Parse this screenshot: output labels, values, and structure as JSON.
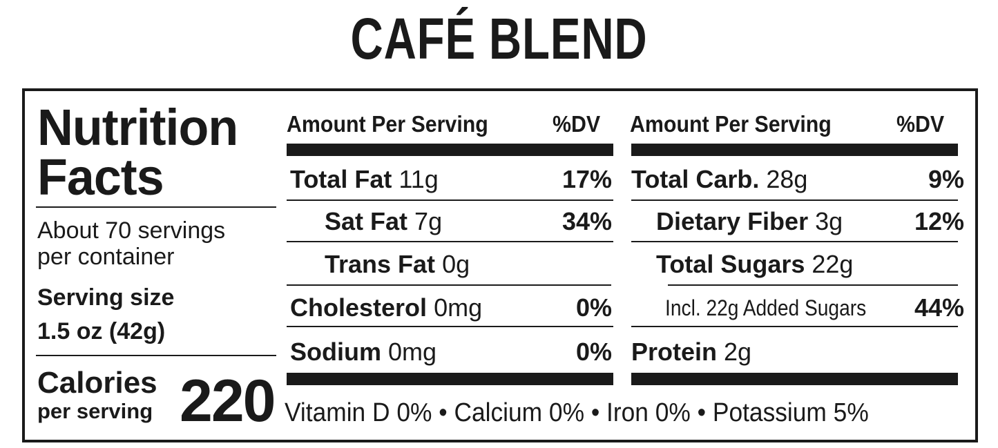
{
  "title": "CAFÉ BLEND",
  "panel": {
    "heading": [
      "Nutrition",
      "Facts"
    ],
    "servings": [
      "About 70 servings",
      "per container"
    ],
    "serving_size_label": "Serving size",
    "serving_size": "1.5 oz (42g)",
    "calories_label": "Calories",
    "calories_sub": "per serving",
    "calories": 220
  },
  "columns": [
    {
      "header": "Amount Per Serving",
      "dv_header": "%DV",
      "rows": [
        {
          "name": "Total Fat",
          "amount": "11g",
          "dv": "17%"
        },
        {
          "name": "Sat Fat",
          "amount": "7g",
          "dv": "34%"
        },
        {
          "name": "Trans Fat",
          "amount": "0g"
        },
        {
          "name": "Cholesterol",
          "amount": "0mg",
          "dv": "0%"
        },
        {
          "name": "Sodium",
          "amount": "0mg",
          "dv": "0%"
        }
      ]
    },
    {
      "header": "Amount Per Serving",
      "dv_header": "%DV",
      "rows": [
        {
          "name": "Total Carb.",
          "amount": "28g",
          "dv": "9%"
        },
        {
          "name": "Dietary Fiber",
          "amount": "3g",
          "dv": "12%"
        },
        {
          "name": "Total Sugars",
          "amount": "22g"
        },
        {
          "amount": "Incl. 22g Added Sugars",
          "dv": "44%"
        },
        {
          "name": "Protein",
          "amount": "2g"
        }
      ]
    }
  ],
  "vitamins": {
    "items": [
      "Vitamin D 0%",
      "Calcium 0%",
      "Iron 0%",
      "Potassium 5%"
    ],
    "separator": "•"
  }
}
